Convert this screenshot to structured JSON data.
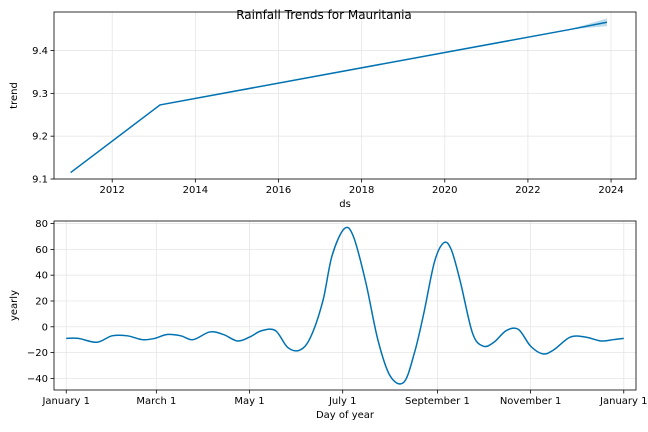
{
  "figure": {
    "title": "Rainfall Trends for Mauritania"
  },
  "chart_data": [
    {
      "type": "line",
      "title": "Rainfall Trends for Mauritania",
      "xlabel": "ds",
      "ylabel": "trend",
      "xlim": [
        2010.6,
        2024.6
      ],
      "ylim": [
        9.1,
        9.49
      ],
      "xticks": [
        2012,
        2014,
        2016,
        2018,
        2020,
        2022,
        2024
      ],
      "xtick_labels": [
        "2012",
        "2014",
        "2016",
        "2018",
        "2020",
        "2022",
        "2024"
      ],
      "yticks": [
        9.1,
        9.2,
        9.3,
        9.4
      ],
      "ytick_labels": [
        "9.1",
        "9.2",
        "9.3",
        "9.4"
      ],
      "grid": true,
      "line_color": "#0072b2",
      "band_color": "#0072b2",
      "series": [
        {
          "x": [
            2011.0,
            2013.15,
            2023.0,
            2023.9
          ],
          "y": [
            9.115,
            9.273,
            9.449,
            9.466
          ]
        }
      ],
      "uncertainty_band": {
        "x": [
          2023.0,
          2023.9
        ],
        "lower": [
          9.449,
          9.457
        ],
        "upper": [
          9.449,
          9.475
        ]
      }
    },
    {
      "type": "line",
      "xlabel": "Day of year",
      "ylabel": "yearly",
      "xlim": [
        -8,
        373
      ],
      "ylim": [
        -49,
        82
      ],
      "xticks": [
        0,
        59,
        120,
        181,
        243,
        304,
        365
      ],
      "xtick_labels": [
        "January 1",
        "March 1",
        "May 1",
        "July 1",
        "September 1",
        "November 1",
        "January 1"
      ],
      "yticks": [
        -40,
        -20,
        0,
        20,
        40,
        60,
        80
      ],
      "ytick_labels": [
        "−40",
        "−20",
        "0",
        "20",
        "40",
        "60",
        "80"
      ],
      "grid": true,
      "line_color": "#0072b2",
      "series": [
        {
          "x": [
            0,
            8,
            20,
            30,
            40,
            50,
            58,
            66,
            75,
            83,
            94,
            103,
            112,
            120,
            128,
            137,
            145,
            153,
            160,
            168,
            174,
            182,
            188,
            196,
            204,
            212,
            221,
            228,
            234,
            241,
            247,
            252,
            258,
            266,
            273,
            280,
            288,
            296,
            304,
            312,
            319,
            330,
            340,
            350,
            358,
            365
          ],
          "y": [
            -9,
            -9,
            -12,
            -7,
            -7,
            -10,
            -9,
            -6,
            -7,
            -10,
            -4,
            -6,
            -11,
            -8,
            -3,
            -3,
            -16,
            -18,
            -8,
            20,
            55,
            76,
            70,
            35,
            -10,
            -38,
            -43,
            -20,
            10,
            50,
            65,
            60,
            35,
            -5,
            -15,
            -12,
            -3,
            -2,
            -15,
            -21,
            -18,
            -8,
            -8,
            -11,
            -10,
            -9
          ]
        }
      ]
    }
  ]
}
